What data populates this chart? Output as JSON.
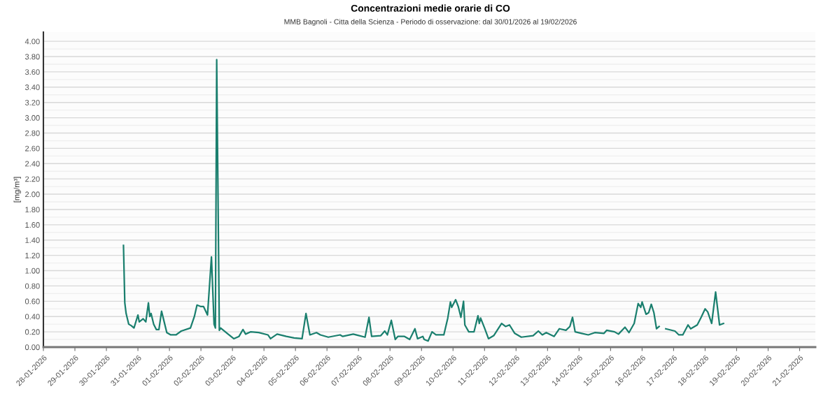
{
  "chart_data": {
    "type": "line",
    "title": "Concentrazioni medie orarie di CO",
    "subtitle": "MMB Bagnoli - Citta della Scienza - Periodo di osservazione: dal 30/01/2026 al 19/02/2026",
    "ylabel": "[mg/m³]",
    "x": [
      "2026-01-30T13:00",
      "2026-01-30T14:00",
      "2026-01-30T15:00",
      "2026-01-30T17:00",
      "2026-01-30T19:00",
      "2026-01-30T21:00",
      "2026-01-31T00:00",
      "2026-01-31T01:00",
      "2026-01-31T04:00",
      "2026-01-31T06:00",
      "2026-01-31T08:00",
      "2026-01-31T09:00",
      "2026-01-31T10:00",
      "2026-01-31T12:00",
      "2026-01-31T14:00",
      "2026-01-31T16:00",
      "2026-01-31T18:00",
      "2026-01-31T20:00",
      "2026-01-31T22:00",
      "2026-02-01T01:00",
      "2026-02-01T05:00",
      "2026-02-01T09:00",
      "2026-02-01T16:00",
      "2026-02-01T19:00",
      "2026-02-01T21:00",
      "2026-02-02T00:00",
      "2026-02-02T02:00",
      "2026-02-02T05:00",
      "2026-02-02T08:00",
      "2026-02-02T10:00",
      "2026-02-02T11:00",
      "2026-02-02T12:00",
      "2026-02-02T14:00",
      "2026-02-02T15:00",
      "2026-02-02T20:00",
      "2026-02-03T01:00",
      "2026-02-03T05:00",
      "2026-02-03T08:00",
      "2026-02-03T10:00",
      "2026-02-03T14:00",
      "2026-02-03T20:00",
      "2026-02-04T03:00",
      "2026-02-04T05:00",
      "2026-02-04T10:00",
      "2026-02-04T17:00",
      "2026-02-04T23:00",
      "2026-02-05T05:00",
      "2026-02-05T08:00",
      "2026-02-05T11:00",
      "2026-02-05T16:00",
      "2026-02-05T19:00",
      "2026-02-06T01:00",
      "2026-02-06T10:00",
      "2026-02-06T12:00",
      "2026-02-06T20:00",
      "2026-02-07T05:00",
      "2026-02-07T08:00",
      "2026-02-07T10:00",
      "2026-02-07T17:00",
      "2026-02-07T20:00",
      "2026-02-07T22:00",
      "2026-02-08T01:00",
      "2026-02-08T04:00",
      "2026-02-08T06:00",
      "2026-02-08T11:00",
      "2026-02-08T15:00",
      "2026-02-08T19:00",
      "2026-02-08T21:00",
      "2026-02-09T01:00",
      "2026-02-09T02:00",
      "2026-02-09T05:00",
      "2026-02-09T08:00",
      "2026-02-09T11:00",
      "2026-02-09T17:00",
      "2026-02-09T20:00",
      "2026-02-09T22:00",
      "2026-02-09T23:00",
      "2026-02-10T02:00",
      "2026-02-10T04:00",
      "2026-02-10T06:00",
      "2026-02-10T08:00",
      "2026-02-10T09:00",
      "2026-02-10T12:00",
      "2026-02-10T16:00",
      "2026-02-10T19:00",
      "2026-02-10T20:00",
      "2026-02-10T21:00",
      "2026-02-11T00:00",
      "2026-02-11T03:00",
      "2026-02-11T07:00",
      "2026-02-11T13:00",
      "2026-02-11T16:00",
      "2026-02-11T19:00",
      "2026-02-11T23:00",
      "2026-02-12T04:00",
      "2026-02-12T13:00",
      "2026-02-12T17:00",
      "2026-02-12T20:00",
      "2026-02-12T23:00",
      "2026-02-13T05:00",
      "2026-02-13T09:00",
      "2026-02-13T14:00",
      "2026-02-13T17:00",
      "2026-02-13T19:00",
      "2026-02-13T21:00",
      "2026-02-14T02:00",
      "2026-02-14T07:00",
      "2026-02-14T12:00",
      "2026-02-14T19:00",
      "2026-02-14T21:00",
      "2026-02-15T03:00",
      "2026-02-15T06:00",
      "2026-02-15T11:00",
      "2026-02-15T14:00",
      "2026-02-15T18:00",
      "2026-02-15T21:00",
      "2026-02-15T23:00",
      "2026-02-16T00:00",
      "2026-02-16T03:00",
      "2026-02-16T05:00",
      "2026-02-16T07:00",
      "2026-02-16T09:00",
      "2026-02-16T11:00",
      "2026-02-16T13:00",
      "2026-02-16T16:00",
      "2026-02-16T18:00",
      "2026-02-17T01:00",
      "2026-02-17T04:00",
      "2026-02-17T07:00",
      "2026-02-17T11:00",
      "2026-02-17T13:00",
      "2026-02-17T18:00",
      "2026-02-17T21:00",
      "2026-02-18T00:00",
      "2026-02-18T02:00",
      "2026-02-18T05:00",
      "2026-02-18T08:00",
      "2026-02-18T11:00",
      "2026-02-18T14:00"
    ],
    "series": [
      {
        "color": "#1a7f6e",
        "values": [
          1.33,
          0.58,
          0.44,
          0.3,
          0.28,
          0.25,
          0.42,
          0.33,
          0.37,
          0.33,
          0.58,
          0.4,
          0.44,
          0.3,
          0.23,
          0.23,
          0.47,
          0.33,
          0.19,
          0.16,
          0.16,
          0.21,
          0.25,
          0.4,
          0.55,
          0.53,
          0.53,
          0.42,
          1.18,
          0.3,
          0.25,
          3.76,
          0.22,
          0.25,
          0.18,
          0.11,
          0.14,
          0.23,
          0.17,
          0.2,
          0.19,
          0.16,
          0.11,
          0.17,
          0.14,
          0.12,
          0.11,
          0.44,
          0.16,
          0.19,
          0.16,
          0.13,
          0.16,
          0.14,
          0.17,
          0.13,
          0.39,
          0.14,
          0.15,
          0.21,
          0.16,
          0.35,
          0.1,
          0.14,
          0.14,
          0.1,
          0.24,
          0.11,
          0.14,
          0.1,
          0.08,
          0.2,
          0.16,
          0.16,
          0.38,
          0.59,
          0.52,
          0.62,
          0.53,
          0.39,
          0.6,
          0.29,
          0.2,
          0.2,
          0.41,
          0.31,
          0.38,
          0.25,
          0.11,
          0.15,
          0.31,
          0.27,
          0.29,
          0.18,
          0.13,
          0.15,
          0.21,
          0.16,
          0.19,
          0.14,
          0.24,
          0.22,
          0.27,
          0.39,
          0.2,
          0.18,
          0.16,
          0.19,
          0.18,
          0.22,
          0.2,
          0.17,
          0.26,
          0.19,
          0.31,
          0.57,
          0.52,
          0.59,
          0.43,
          0.45,
          0.56,
          0.45,
          0.24,
          0.27,
          null,
          0.24,
          0.21,
          0.16,
          0.16,
          0.29,
          0.24,
          0.29,
          0.39,
          0.5,
          0.46,
          0.31,
          0.72,
          0.29,
          0.31
        ]
      }
    ],
    "xlim": [
      "2026-01-28",
      "2026-02-21T12:00"
    ],
    "xticks": [
      {
        "value": "2026-01-28",
        "label": "28-01-2026"
      },
      {
        "value": "2026-01-29",
        "label": "29-01-2026"
      },
      {
        "value": "2026-01-30",
        "label": "30-01-2026"
      },
      {
        "value": "2026-01-31",
        "label": "31-01-2026"
      },
      {
        "value": "2026-02-01",
        "label": "01-02-2026"
      },
      {
        "value": "2026-02-02",
        "label": "02-02-2026"
      },
      {
        "value": "2026-02-03",
        "label": "03-02-2026"
      },
      {
        "value": "2026-02-04",
        "label": "04-02-2026"
      },
      {
        "value": "2026-02-05",
        "label": "05-02-2026"
      },
      {
        "value": "2026-02-06",
        "label": "06-02-2026"
      },
      {
        "value": "2026-02-07",
        "label": "07-02-2026"
      },
      {
        "value": "2026-02-08",
        "label": "08-02-2026"
      },
      {
        "value": "2026-02-09",
        "label": "09-02-2026"
      },
      {
        "value": "2026-02-10",
        "label": "10-02-2026"
      },
      {
        "value": "2026-02-11",
        "label": "11-02-2026"
      },
      {
        "value": "2026-02-12",
        "label": "12-02-2026"
      },
      {
        "value": "2026-02-13",
        "label": "13-02-2026"
      },
      {
        "value": "2026-02-14",
        "label": "14-02-2026"
      },
      {
        "value": "2026-02-15",
        "label": "15-02-2026"
      },
      {
        "value": "2026-02-16",
        "label": "16-02-2026"
      },
      {
        "value": "2026-02-17",
        "label": "17-02-2026"
      },
      {
        "value": "2026-02-18",
        "label": "18-02-2026"
      },
      {
        "value": "2026-02-19",
        "label": "19-02-2026"
      },
      {
        "value": "2026-02-20",
        "label": "20-02-2026"
      },
      {
        "value": "2026-02-21",
        "label": "21-02-2026"
      }
    ],
    "ylim": [
      0,
      4.12
    ],
    "yticks": [
      {
        "value": 0,
        "label": "0.00"
      },
      {
        "value": 0.2,
        "label": "0.20"
      },
      {
        "value": 0.4,
        "label": "0.40"
      },
      {
        "value": 0.6,
        "label": "0.60"
      },
      {
        "value": 0.8,
        "label": "0.80"
      },
      {
        "value": 1,
        "label": "1.00"
      },
      {
        "value": 1.2,
        "label": "1.20"
      },
      {
        "value": 1.4,
        "label": "1.40"
      },
      {
        "value": 1.6,
        "label": "1.60"
      },
      {
        "value": 1.8,
        "label": "1.80"
      },
      {
        "value": 2,
        "label": "2.00"
      },
      {
        "value": 2.2,
        "label": "2.20"
      },
      {
        "value": 2.4,
        "label": "2.40"
      },
      {
        "value": 2.6,
        "label": "2.60"
      },
      {
        "value": 2.8,
        "label": "2.80"
      },
      {
        "value": 3,
        "label": "3.00"
      },
      {
        "value": 3.2,
        "label": "3.20"
      },
      {
        "value": 3.4,
        "label": "3.40"
      },
      {
        "value": 3.6,
        "label": "3.60"
      },
      {
        "value": 3.8,
        "label": "3.80"
      },
      {
        "value": 4,
        "label": "4.00"
      }
    ],
    "grid": "y",
    "marker": "none",
    "line_style": "solid"
  }
}
